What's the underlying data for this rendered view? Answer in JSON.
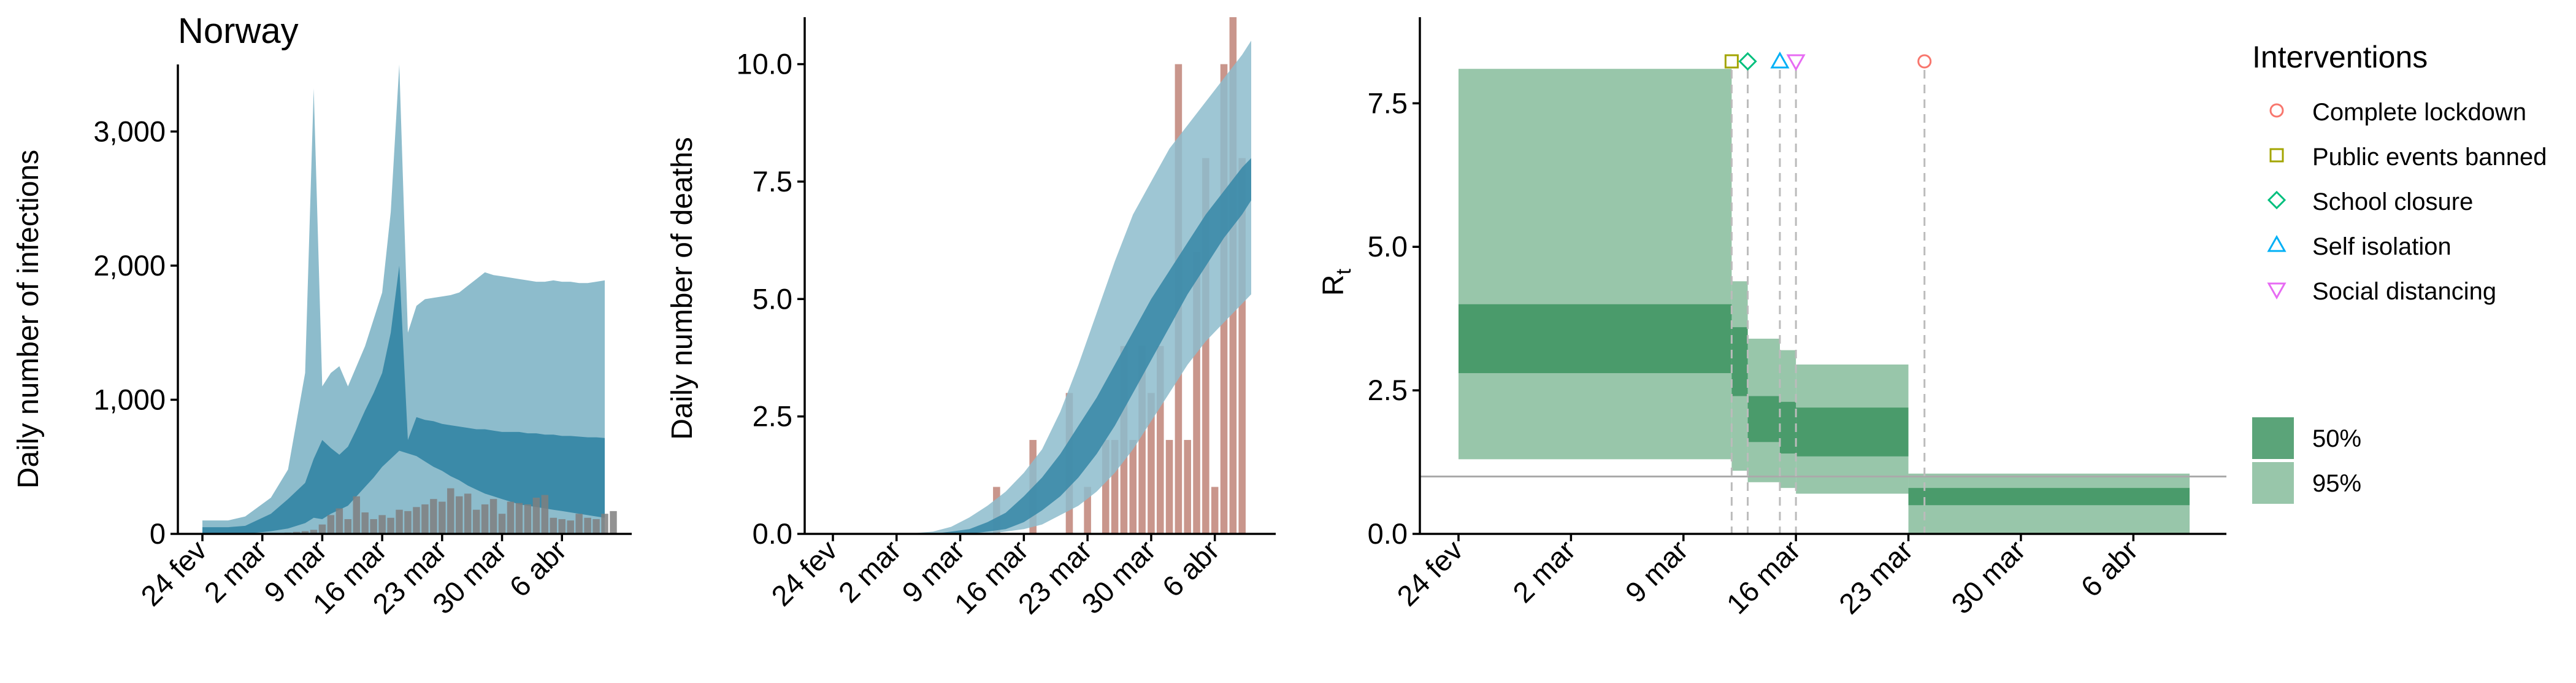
{
  "chart_data": [
    {
      "type": "area",
      "title": "Norway",
      "xlabel": "",
      "ylabel": "Daily number of infections",
      "ylim": [
        0,
        3500
      ],
      "x_ticks": [
        "24 fev",
        "2 mar",
        "9 mar",
        "16 mar",
        "23 mar",
        "30 mar",
        "6 abr"
      ],
      "y_ticks": [
        "0",
        "1,000",
        "2,000",
        "3,000"
      ],
      "y_tick_values": [
        0,
        1000,
        2000,
        3000
      ],
      "x_tick_days": [
        0,
        7,
        14,
        21,
        28,
        35,
        42
      ],
      "x": [
        0,
        3,
        5,
        8,
        10,
        12,
        13,
        14,
        15,
        16,
        17,
        18,
        19,
        20,
        21,
        22,
        23,
        24,
        25,
        26,
        27,
        28,
        29,
        30,
        31,
        32,
        33,
        34,
        35,
        36,
        37,
        38,
        39,
        40,
        41,
        42,
        43,
        44,
        45,
        46,
        47
      ],
      "series": [
        {
          "kind": "band",
          "lower": [
            0,
            0,
            0,
            0,
            0,
            0,
            0,
            0,
            0,
            0,
            0,
            0,
            0,
            0,
            0,
            0,
            0,
            0,
            0,
            0,
            0,
            0,
            0,
            0,
            0,
            0,
            0,
            0,
            0,
            0,
            0,
            0,
            0,
            0,
            0,
            0,
            0,
            0,
            0,
            0,
            0
          ],
          "upper": [
            100,
            100,
            130,
            270,
            480,
            1200,
            3320,
            1100,
            1200,
            1250,
            1100,
            1250,
            1400,
            1600,
            1800,
            2400,
            3500,
            1500,
            1700,
            1750,
            1760,
            1770,
            1780,
            1800,
            1850,
            1900,
            1950,
            1930,
            1920,
            1910,
            1900,
            1890,
            1880,
            1880,
            1890,
            1880,
            1880,
            1870,
            1870,
            1880,
            1890
          ]
        },
        {
          "kind": "band",
          "lower": [
            0,
            0,
            0,
            20,
            40,
            80,
            120,
            110,
            150,
            180,
            210,
            280,
            350,
            420,
            500,
            560,
            620,
            600,
            580,
            540,
            500,
            470,
            430,
            400,
            360,
            330,
            300,
            280,
            260,
            240,
            220,
            210,
            200,
            190,
            180,
            170,
            160,
            150,
            140,
            130,
            120
          ],
          "upper": [
            50,
            50,
            60,
            150,
            260,
            380,
            560,
            700,
            640,
            590,
            650,
            780,
            920,
            1050,
            1200,
            1500,
            2000,
            700,
            870,
            850,
            840,
            820,
            810,
            800,
            790,
            780,
            780,
            770,
            760,
            760,
            760,
            750,
            750,
            740,
            740,
            730,
            730,
            725,
            720,
            720,
            715
          ]
        }
      ],
      "bars_x": [
        6,
        8,
        10,
        11,
        12,
        13,
        14,
        15,
        16,
        17,
        18,
        19,
        20,
        21,
        22,
        23,
        24,
        25,
        26,
        27,
        28,
        29,
        30,
        31,
        32,
        33,
        34,
        35,
        36,
        37,
        38,
        39,
        40,
        41,
        42,
        43,
        44,
        45,
        46,
        47,
        48
      ],
      "bars": [
        4,
        5,
        10,
        15,
        20,
        30,
        70,
        140,
        190,
        110,
        280,
        160,
        110,
        140,
        120,
        180,
        170,
        200,
        220,
        260,
        240,
        340,
        280,
        300,
        180,
        220,
        260,
        150,
        240,
        230,
        220,
        270,
        290,
        120,
        110,
        100,
        150,
        120,
        110,
        150,
        170
      ]
    },
    {
      "type": "area",
      "title": "",
      "xlabel": "",
      "ylabel": "Daily number of deaths",
      "ylim": [
        0,
        11
      ],
      "x_ticks": [
        "24 fev",
        "2 mar",
        "9 mar",
        "16 mar",
        "23 mar",
        "30 mar",
        "6 abr"
      ],
      "y_ticks": [
        "0.0",
        "2.5",
        "5.0",
        "7.5",
        "10.0"
      ],
      "y_tick_values": [
        0,
        2.5,
        5,
        7.5,
        10
      ],
      "x_tick_days": [
        0,
        7,
        14,
        21,
        28,
        35,
        42
      ],
      "x": [
        0,
        4,
        8,
        11,
        13,
        15,
        17,
        19,
        21,
        23,
        25,
        27,
        29,
        31,
        33,
        35,
        37,
        39,
        41,
        43,
        45,
        46
      ],
      "series": [
        {
          "kind": "band",
          "lower": [
            0,
            0,
            0,
            0,
            0,
            0,
            0,
            0.05,
            0.1,
            0.2,
            0.4,
            0.6,
            0.9,
            1.3,
            1.8,
            2.4,
            3.0,
            3.6,
            4.1,
            4.5,
            4.9,
            5.1
          ],
          "upper": [
            0,
            0,
            0,
            0.05,
            0.15,
            0.35,
            0.6,
            0.9,
            1.3,
            1.8,
            2.6,
            3.6,
            4.7,
            5.8,
            6.8,
            7.5,
            8.2,
            8.7,
            9.2,
            9.7,
            10.2,
            10.5
          ]
        },
        {
          "kind": "band",
          "lower": [
            0,
            0,
            0,
            0,
            0,
            0,
            0.05,
            0.1,
            0.25,
            0.5,
            0.8,
            1.2,
            1.7,
            2.3,
            3.0,
            3.7,
            4.4,
            5.1,
            5.7,
            6.3,
            6.8,
            7.1
          ],
          "upper": [
            0,
            0,
            0,
            0,
            0.05,
            0.1,
            0.25,
            0.45,
            0.8,
            1.2,
            1.7,
            2.3,
            2.9,
            3.6,
            4.3,
            5.0,
            5.6,
            6.2,
            6.8,
            7.3,
            7.8,
            8.0
          ]
        }
      ],
      "bars_x": [
        18,
        20,
        22,
        24,
        26,
        27,
        28,
        29,
        30,
        31,
        32,
        33,
        34,
        35,
        36,
        37,
        38,
        39,
        40,
        41,
        42,
        43,
        44,
        45,
        46
      ],
      "bars": [
        1,
        0,
        2,
        0,
        3,
        0,
        1,
        0,
        2,
        2,
        4,
        2,
        4,
        3,
        4,
        2,
        10,
        2,
        6,
        8,
        1,
        10,
        11,
        8,
        0
      ]
    },
    {
      "type": "area",
      "title": "",
      "xlabel": "",
      "ylabel": "R",
      "ylabel_subscript": "t",
      "ylim": [
        0,
        9.0
      ],
      "x_ticks": [
        "24 fev",
        "2 mar",
        "9 mar",
        "16 mar",
        "23 mar",
        "30 mar",
        "6 abr"
      ],
      "y_ticks": [
        "0.0",
        "2.5",
        "5.0",
        "7.5"
      ],
      "y_tick_values": [
        0,
        2.5,
        5,
        7.5
      ],
      "x_tick_days": [
        0,
        7,
        14,
        21,
        28,
        35,
        42
      ],
      "xlim": [
        0,
        48
      ],
      "steps": [
        {
          "from": 0,
          "to": 17,
          "lo95": 1.3,
          "hi95": 8.1,
          "lo50": 2.8,
          "hi50": 4.0
        },
        {
          "from": 17,
          "to": 18,
          "lo95": 1.1,
          "hi95": 4.4,
          "lo50": 2.4,
          "hi50": 3.6
        },
        {
          "from": 18,
          "to": 20,
          "lo95": 0.9,
          "hi95": 3.4,
          "lo50": 1.6,
          "hi50": 2.4
        },
        {
          "from": 20,
          "to": 21,
          "lo95": 0.8,
          "hi95": 3.2,
          "lo50": 1.4,
          "hi50": 2.3
        },
        {
          "from": 21,
          "to": 28,
          "lo95": 0.7,
          "hi95": 2.95,
          "lo50": 1.35,
          "hi50": 2.2
        },
        {
          "from": 28,
          "to": 45.5,
          "lo95": 0.0,
          "hi95": 1.05,
          "lo50": 0.5,
          "hi50": 0.8
        }
      ],
      "reference_line": 1.0,
      "interventions": [
        {
          "name": "Public events banned",
          "day": 17,
          "marker": "square",
          "color": "#a3a500"
        },
        {
          "name": "School closure",
          "day": 18,
          "marker": "diamond",
          "color": "#00bf7d"
        },
        {
          "name": "Self isolation",
          "day": 20,
          "marker": "triangle-up",
          "color": "#00b0f6"
        },
        {
          "name": "Social distancing",
          "day": 21,
          "marker": "triangle-down",
          "color": "#e76bf3"
        },
        {
          "name": "Complete lockdown",
          "day": 29,
          "marker": "circle",
          "color": "#f8766d"
        }
      ],
      "legend": {
        "title": "Interventions",
        "items": [
          {
            "label": "Complete lockdown",
            "marker": "circle",
            "color": "#f8766d"
          },
          {
            "label": "Public events banned",
            "marker": "square",
            "color": "#a3a500"
          },
          {
            "label": "School closure",
            "marker": "diamond",
            "color": "#00bf7d"
          },
          {
            "label": "Self isolation",
            "marker": "triangle-up",
            "color": "#00b0f6"
          },
          {
            "label": "Social distancing",
            "marker": "triangle-down",
            "color": "#e76bf3"
          }
        ],
        "ci_items": [
          {
            "label": "50%",
            "color": "#5ba479"
          },
          {
            "label": "95%",
            "color": "#98c6aa"
          }
        ],
        "placement": "right"
      }
    }
  ],
  "colors": {
    "band95_blue": "#8dbccc",
    "band50_blue": "#3b8aa8",
    "bars_infections": "#7f7f7f",
    "bars_deaths": "#c9968c",
    "band95_green": "#98c6aa",
    "band50_green": "#4a9b6b",
    "reference_line": "#aaaaaa"
  }
}
